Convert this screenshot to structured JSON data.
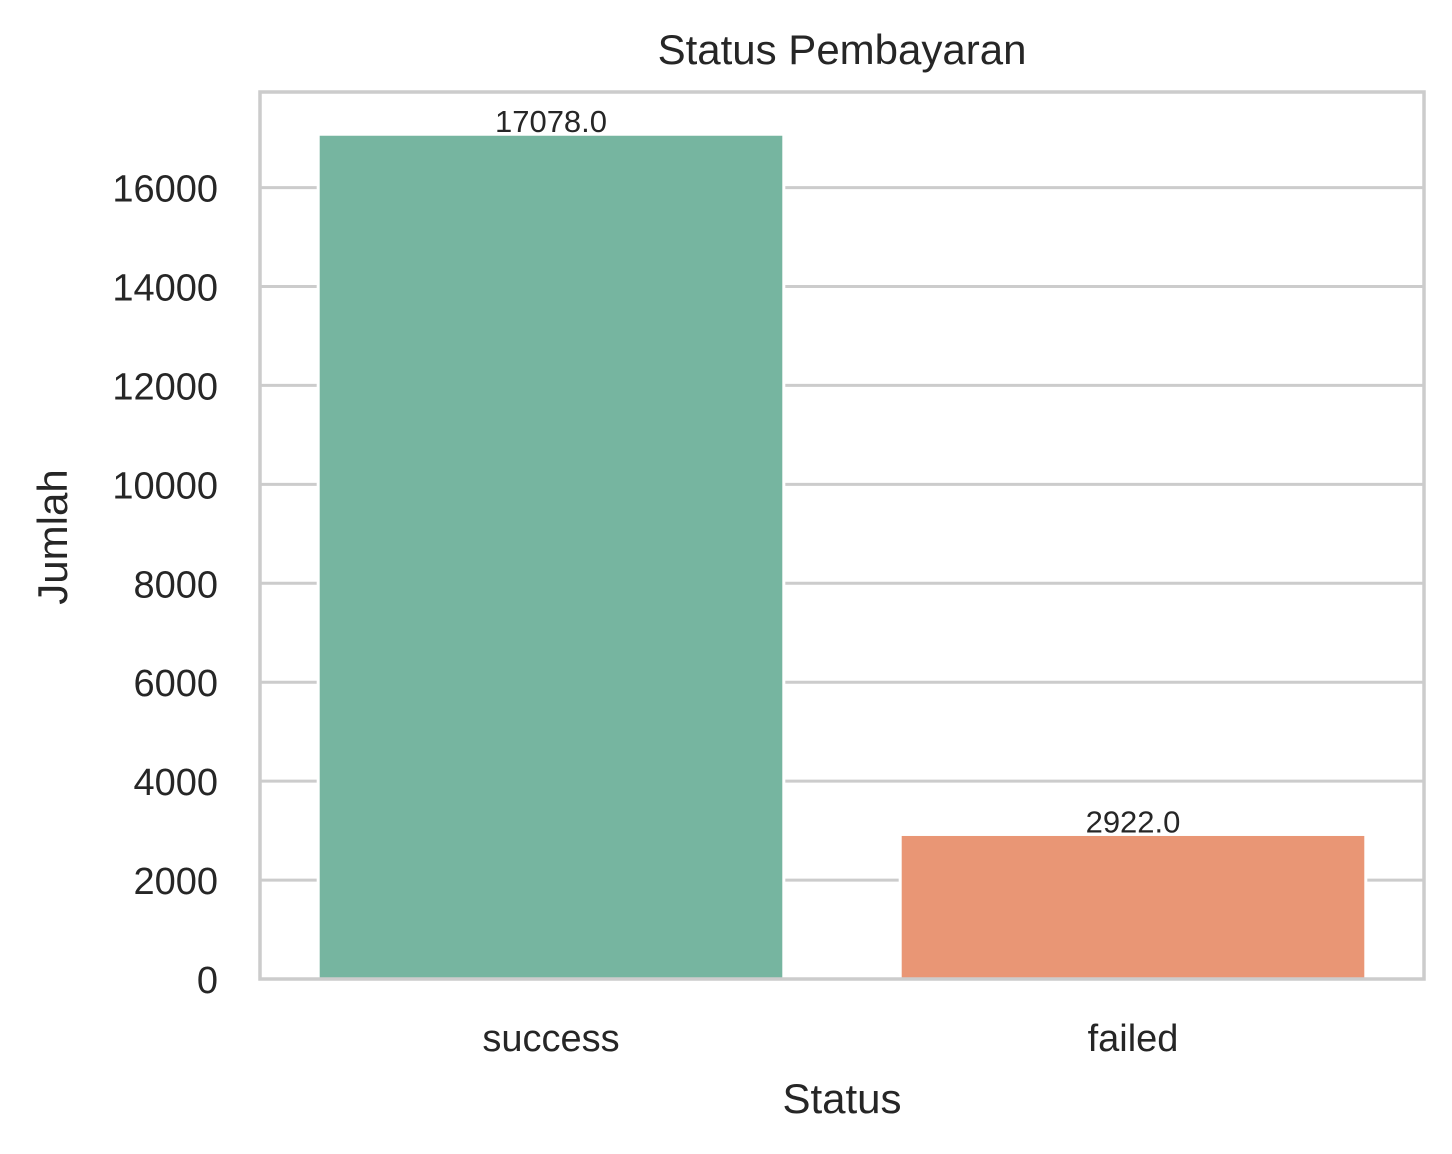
{
  "chart_data": {
    "type": "bar",
    "title": "Status Pembayaran",
    "xlabel": "Status",
    "ylabel": "Jumlah",
    "categories": [
      "success",
      "failed"
    ],
    "values": [
      17078,
      2922
    ],
    "data_labels": [
      "17078.0",
      "2922.0"
    ],
    "colors": [
      "#76b5a0",
      "#e99675"
    ],
    "ylim": [
      0,
      17932
    ],
    "yticks": [
      0,
      2000,
      4000,
      6000,
      8000,
      10000,
      12000,
      14000,
      16000
    ],
    "ytick_labels": [
      "0",
      "2000",
      "4000",
      "6000",
      "8000",
      "10000",
      "12000",
      "14000",
      "16000"
    ],
    "grid": true,
    "grid_color": "#cccccc",
    "text_color": "#262626"
  }
}
